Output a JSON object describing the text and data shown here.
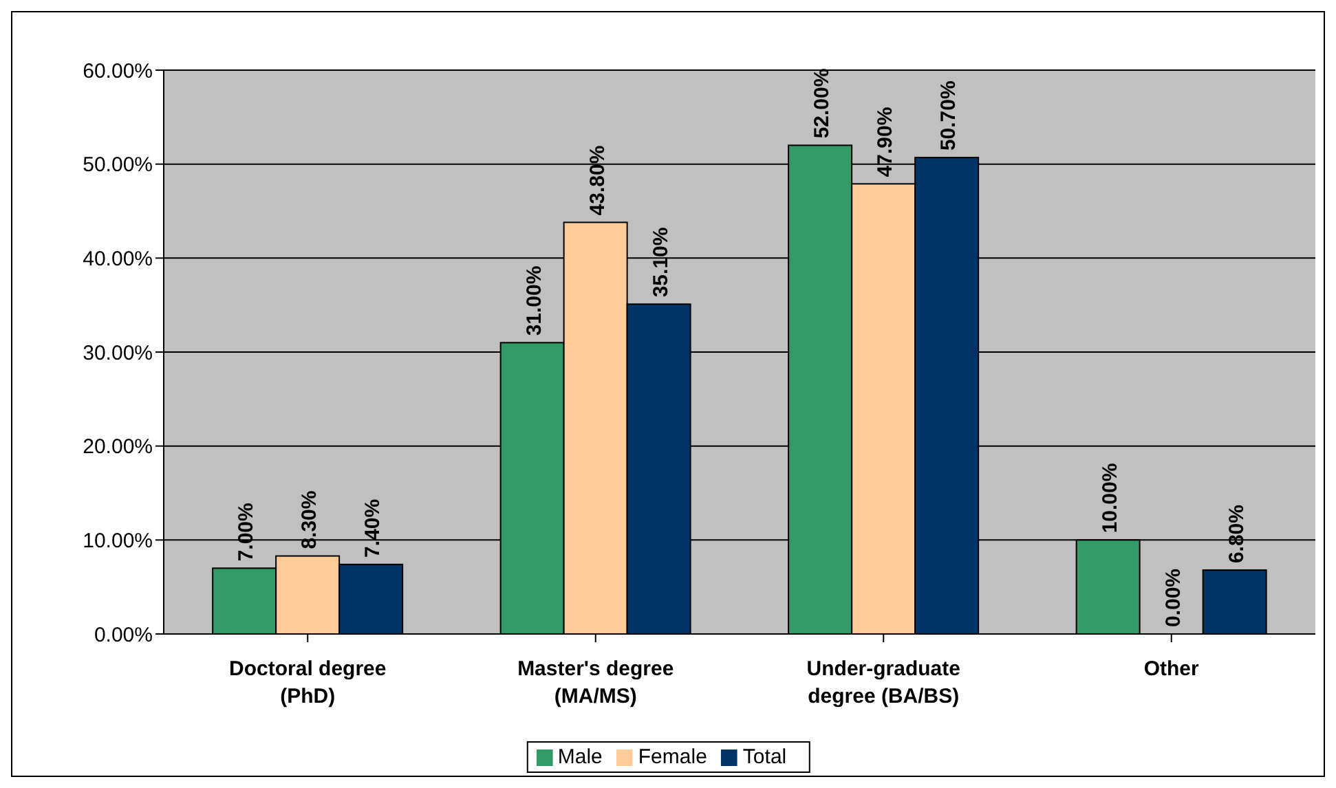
{
  "chart_data": {
    "type": "bar",
    "categories": [
      "Doctoral degree\n(PhD)",
      "Master's degree\n(MA/MS)",
      "Under-graduate\ndegree (BA/BS)",
      "Other"
    ],
    "series": [
      {
        "name": "Male",
        "color": "#339966",
        "values": [
          7,
          31,
          52,
          10
        ],
        "value_labels": [
          "7.00%",
          "31.00%",
          "52.00%",
          "10.00%"
        ]
      },
      {
        "name": "Female",
        "color": "#ffcc99",
        "values": [
          8.3,
          43.8,
          47.9,
          0
        ],
        "value_labels": [
          "8.30%",
          "43.80%",
          "47.90%",
          "0.00%"
        ]
      },
      {
        "name": "Total",
        "color": "#003366",
        "values": [
          7.4,
          35.1,
          50.7,
          6.8
        ],
        "value_labels": [
          "7.40%",
          "35.10%",
          "50.70%",
          "6.80%"
        ]
      }
    ],
    "ylim": [
      0,
      60
    ],
    "yticks": [
      {
        "value": 0,
        "label": "0.00%"
      },
      {
        "value": 10,
        "label": "10.00%"
      },
      {
        "value": 20,
        "label": "20.00%"
      },
      {
        "value": 30,
        "label": "30.00%"
      },
      {
        "value": 40,
        "label": "40.00%"
      },
      {
        "value": 50,
        "label": "50.00%"
      },
      {
        "value": 60,
        "label": "60.00%"
      }
    ],
    "grid": "y",
    "legend": "bottom"
  }
}
